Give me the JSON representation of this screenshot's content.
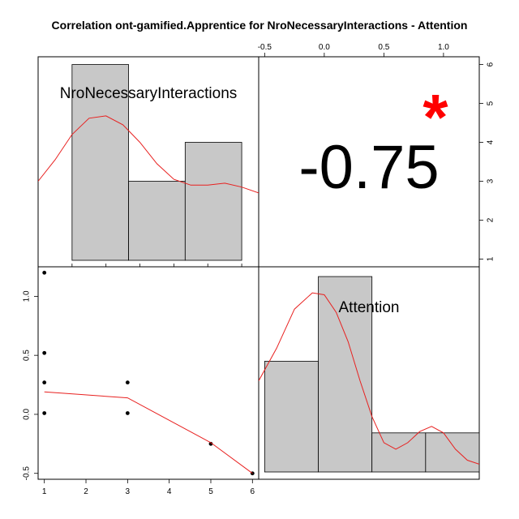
{
  "title": "Correlation ont-gamified.Apprentice for NroNecessaryInteractions - Attention",
  "correlation": {
    "value_label": "-0.75",
    "significance": "*",
    "significance_color": "#ff0000"
  },
  "colors": {
    "bar_fill": "#c8c8c8",
    "density_line": "#e8201f",
    "fit_line": "#e8201f",
    "points": "#000000"
  },
  "chart_data": [
    {
      "type": "bar",
      "panel": "top-left",
      "variable": "NroNecessaryInteractions",
      "bins": [
        {
          "start": 1.0,
          "end": 2.6667,
          "height": 6
        },
        {
          "start": 2.6667,
          "end": 4.3333,
          "height": 3
        },
        {
          "start": 4.3333,
          "end": 6.0,
          "height": 4
        }
      ],
      "density_curve": [
        [
          0.0,
          3.0
        ],
        [
          0.5,
          3.55
        ],
        [
          1.0,
          4.2
        ],
        [
          1.5,
          4.62
        ],
        [
          2.0,
          4.68
        ],
        [
          2.5,
          4.45
        ],
        [
          3.0,
          4.0
        ],
        [
          3.5,
          3.45
        ],
        [
          4.0,
          3.05
        ],
        [
          4.5,
          2.9
        ],
        [
          5.0,
          2.9
        ],
        [
          5.5,
          2.95
        ],
        [
          6.0,
          2.85
        ],
        [
          6.5,
          2.7
        ]
      ],
      "xlim": [
        0.0,
        6.5
      ],
      "ylim": [
        0.8,
        6.2
      ],
      "x_ticks": [
        1,
        2,
        3,
        4,
        5,
        6
      ],
      "right_axis_ticks": [
        "1",
        "2",
        "3",
        "4",
        "5",
        "6"
      ]
    },
    {
      "type": "bar",
      "panel": "bottom-right",
      "variable": "Attention",
      "bins": [
        {
          "start": -0.5,
          "end": -0.05,
          "height": 1.7
        },
        {
          "start": -0.05,
          "end": 0.4,
          "height": 3.0
        },
        {
          "start": 0.4,
          "end": 0.85,
          "height": 0.6
        },
        {
          "start": 0.85,
          "end": 1.3,
          "height": 0.6
        }
      ],
      "density_curve": [
        [
          -0.55,
          1.4
        ],
        [
          -0.4,
          1.9
        ],
        [
          -0.25,
          2.5
        ],
        [
          -0.1,
          2.75
        ],
        [
          0.0,
          2.72
        ],
        [
          0.1,
          2.45
        ],
        [
          0.2,
          2.0
        ],
        [
          0.3,
          1.4
        ],
        [
          0.4,
          0.85
        ],
        [
          0.5,
          0.45
        ],
        [
          0.6,
          0.35
        ],
        [
          0.7,
          0.45
        ],
        [
          0.8,
          0.62
        ],
        [
          0.9,
          0.7
        ],
        [
          1.0,
          0.6
        ],
        [
          1.1,
          0.35
        ],
        [
          1.2,
          0.18
        ],
        [
          1.3,
          0.12
        ]
      ],
      "xlim": [
        -0.55,
        1.3
      ],
      "ylim": [
        0.0,
        3.15
      ],
      "top_axis_ticks": [
        "-0.5",
        "0.0",
        "0.5",
        "1.0"
      ],
      "top_axis_values": [
        -0.5,
        0.0,
        0.5,
        1.0
      ]
    },
    {
      "type": "scatter",
      "panel": "bottom-left",
      "x_variable": "NroNecessaryInteractions",
      "y_variable": "Attention",
      "points": [
        {
          "x": 1,
          "y": 1.2
        },
        {
          "x": 1,
          "y": 0.52
        },
        {
          "x": 1,
          "y": 0.27
        },
        {
          "x": 1,
          "y": 0.01
        },
        {
          "x": 3,
          "y": 0.27
        },
        {
          "x": 3,
          "y": 0.01
        },
        {
          "x": 5,
          "y": -0.25
        },
        {
          "x": 6,
          "y": -0.5
        }
      ],
      "fit_line": [
        [
          1,
          0.19
        ],
        [
          3,
          0.14
        ],
        [
          5,
          -0.24
        ],
        [
          6,
          -0.5
        ]
      ],
      "xlim": [
        0.85,
        6.15
      ],
      "ylim": [
        -0.55,
        1.25
      ],
      "x_ticks": [
        "1",
        "2",
        "3",
        "4",
        "5",
        "6"
      ],
      "x_tick_values": [
        1,
        2,
        3,
        4,
        5,
        6
      ],
      "y_ticks": [
        "-0.5",
        "0.0",
        "0.5",
        "1.0"
      ],
      "y_tick_values": [
        -0.5,
        0.0,
        0.5,
        1.0
      ]
    }
  ]
}
